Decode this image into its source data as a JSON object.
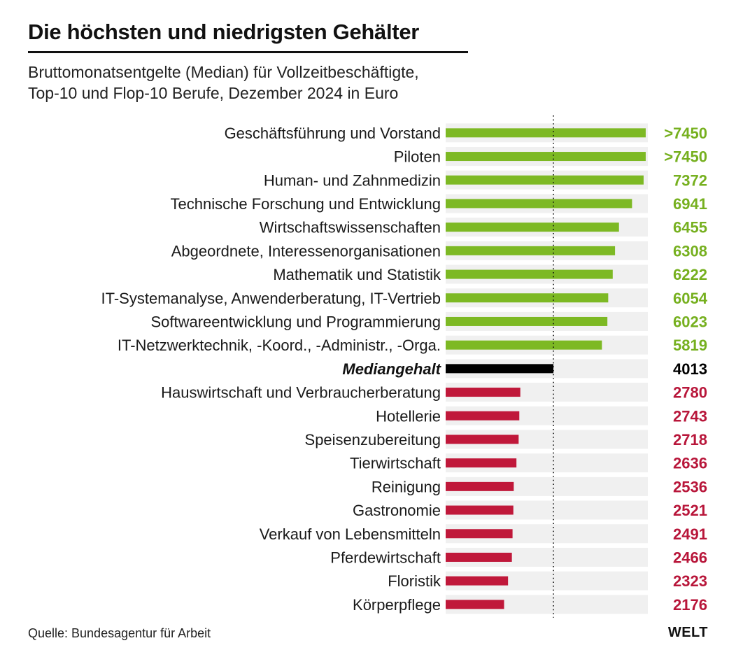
{
  "header": {
    "title": "Die höchsten und niedrigsten Gehälter",
    "subtitle_line1": "Bruttomonatsentgelte (Median) für Vollzeitbeschäftigte,",
    "subtitle_line2": "Top-10 und Flop-10 Berufe, Dezember 2024 in Euro"
  },
  "footer": {
    "source": "Quelle: Bundesagentur für Arbeit",
    "logo": "WELT"
  },
  "colors": {
    "top": "#7db924",
    "median": "#000000",
    "bottom": "#c0183a",
    "track": "#f0f0f0",
    "top_text": "#76b01f",
    "bottom_text": "#b8163a"
  },
  "chart_data": {
    "type": "bar",
    "orientation": "horizontal",
    "title": "Die höchsten und niedrigsten Gehälter",
    "subtitle": "Bruttomonatsentgelte (Median) für Vollzeitbeschäftigte, Top-10 und Flop-10 Berufe, Dezember 2024 in Euro",
    "xlabel": "",
    "ylabel": "",
    "unit": "Euro",
    "xlim": [
      0,
      7530
    ],
    "reference_line": {
      "label": "Mediangehalt",
      "value": 4013,
      "style": "dotted"
    },
    "grid": false,
    "categories": [
      "Geschäftsführung und Vorstand",
      "Piloten",
      "Human- und Zahnmedizin",
      "Technische Forschung und Entwicklung",
      "Wirtschaftswissenschaften",
      "Abgeordnete, Interessenorganisationen",
      "Mathematik und Statistik",
      "IT-Systemanalyse, Anwenderberatung, IT-Vertrieb",
      "Softwareentwicklung und Programmierung",
      "IT-Netzwerktechnik, -Koord., -Administr., -Orga.",
      "Mediangehalt",
      "Hauswirtschaft und Verbraucherberatung",
      "Hotellerie",
      "Speisenzubereitung",
      "Tierwirtschaft",
      "Reinigung",
      "Gastronomie",
      "Verkauf von Lebensmitteln",
      "Pferdewirtschaft",
      "Floristik",
      "Körperpflege"
    ],
    "values": [
      7450,
      7450,
      7372,
      6941,
      6455,
      6308,
      6222,
      6054,
      6023,
      5819,
      4013,
      2780,
      2743,
      2718,
      2636,
      2536,
      2521,
      2491,
      2466,
      2323,
      2176
    ],
    "value_labels": [
      ">7450",
      ">7450",
      "7372",
      "6941",
      "6455",
      "6308",
      "6222",
      "6054",
      "6023",
      "5819",
      "4013",
      "2780",
      "2743",
      "2718",
      "2636",
      "2536",
      "2521",
      "2491",
      "2466",
      "2323",
      "2176"
    ],
    "groups": [
      "top",
      "top",
      "top",
      "top",
      "top",
      "top",
      "top",
      "top",
      "top",
      "top",
      "median",
      "bottom",
      "bottom",
      "bottom",
      "bottom",
      "bottom",
      "bottom",
      "bottom",
      "bottom",
      "bottom",
      "bottom"
    ]
  }
}
